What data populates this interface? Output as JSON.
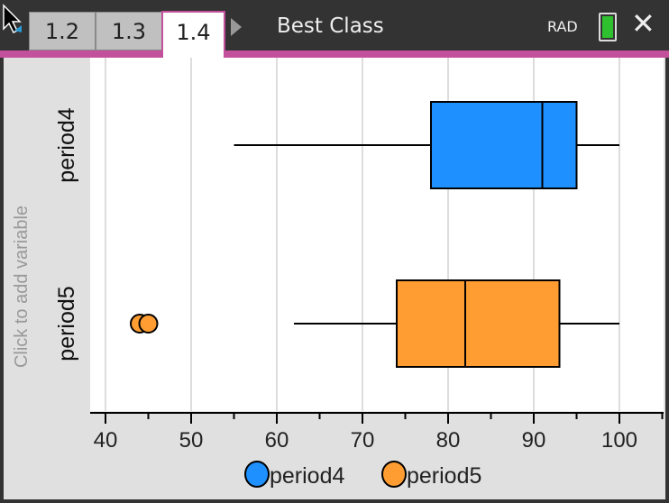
{
  "tabs": [
    {
      "label": "1.2"
    },
    {
      "label": "1.3"
    },
    {
      "label": "1.4",
      "active": true
    }
  ],
  "document_title": "Best Class",
  "angle_mode": "RAD",
  "close_label": "✕",
  "sidebar": {
    "add_variable": "Click to add variable"
  },
  "colors": {
    "period4": "#1e90ff",
    "period5": "#ff9d33",
    "accent": "#c2509a"
  },
  "chart_data": {
    "type": "boxplot",
    "xlim": [
      38,
      106
    ],
    "xticks": [
      40,
      50,
      60,
      70,
      80,
      90,
      100
    ],
    "xtick_labels": [
      "40",
      "50",
      "60",
      "70",
      "80",
      "90",
      "100"
    ],
    "grid": true,
    "legend_position": "bottom",
    "legend": [
      "period4",
      "period5"
    ],
    "series": [
      {
        "name": "period4",
        "min": 55,
        "q1": 78,
        "median": 91,
        "q3": 95,
        "max": 100,
        "outliers": []
      },
      {
        "name": "period5",
        "min": 62,
        "q1": 74,
        "median": 82,
        "q3": 93,
        "max": 100,
        "outliers": [
          44,
          45
        ]
      }
    ]
  }
}
